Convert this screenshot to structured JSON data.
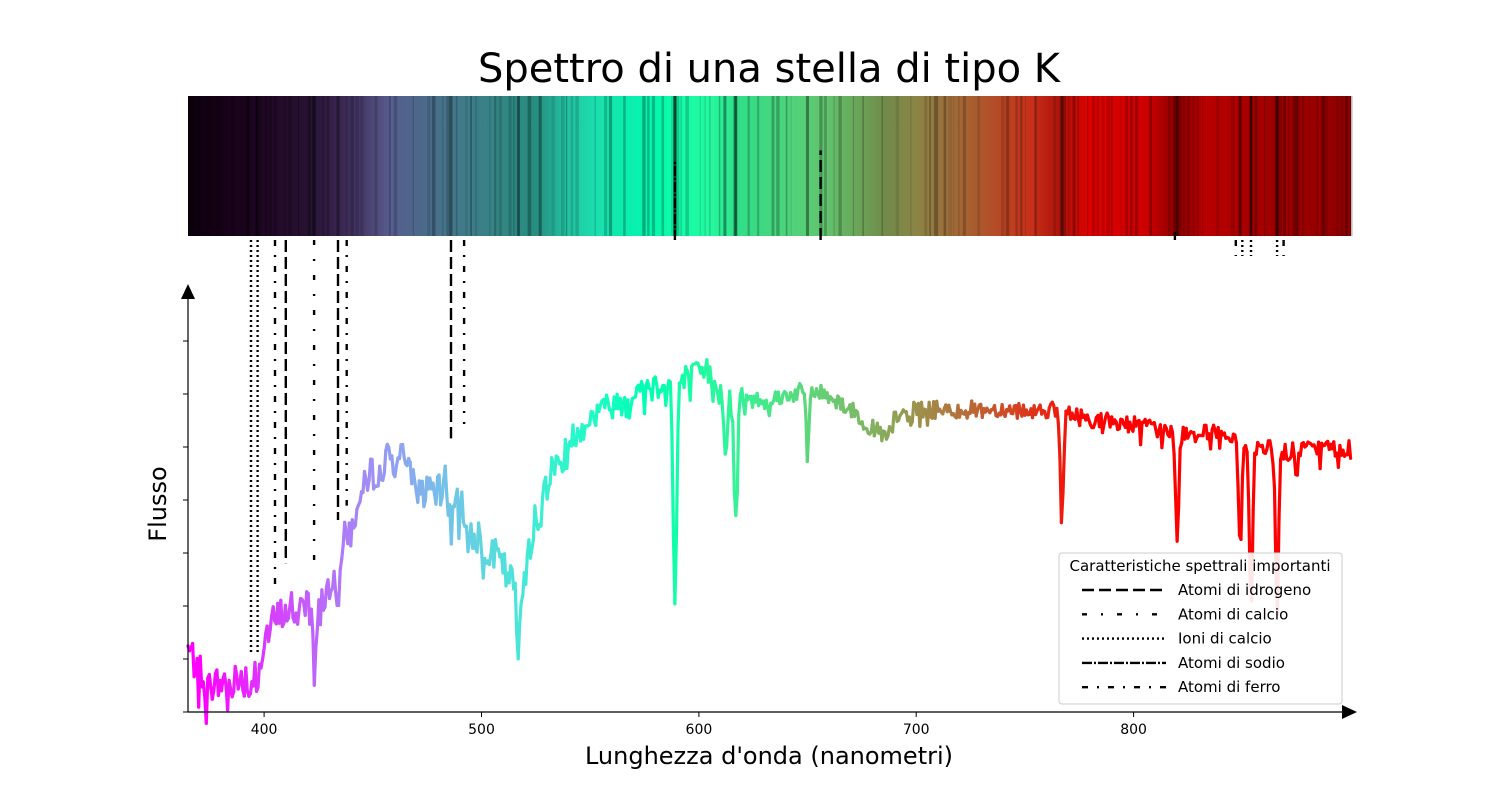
{
  "chart_data": {
    "type": "line",
    "title": "Spettro di una stella di tipo K",
    "xlabel": "Lunghezza d'onda (nanometri)",
    "ylabel": "Flusso",
    "xlim": [
      365,
      900
    ],
    "ylim": [
      0,
      1.12
    ],
    "xticks": [
      400,
      500,
      600,
      700,
      800
    ],
    "ytick_count": 12,
    "yticklabels_shown": false,
    "grid": false,
    "legend_position": "lower-right",
    "spectrum_colormap": "rainbow (violet at short wavelength to red at long wavelength)",
    "spectrum_profile": {
      "x": [
        365,
        370,
        373,
        380,
        390,
        395,
        400,
        405,
        410,
        415,
        420,
        425,
        430,
        435,
        440,
        445,
        450,
        455,
        460,
        465,
        470,
        475,
        480,
        485,
        490,
        495,
        500,
        505,
        510,
        515,
        518,
        522,
        525,
        530,
        535,
        540,
        545,
        550,
        555,
        560,
        565,
        570,
        575,
        580,
        585,
        590,
        595,
        600,
        605,
        610,
        615,
        620,
        630,
        640,
        650,
        660,
        670,
        680,
        687,
        690,
        700,
        720,
        740,
        760,
        780,
        800,
        820,
        840,
        850,
        860,
        870,
        880,
        890,
        900
      ],
      "y": [
        0.13,
        0.09,
        0.05,
        0.06,
        0.07,
        0.09,
        0.15,
        0.19,
        0.21,
        0.22,
        0.24,
        0.21,
        0.27,
        0.34,
        0.38,
        0.45,
        0.5,
        0.52,
        0.53,
        0.52,
        0.48,
        0.45,
        0.45,
        0.49,
        0.44,
        0.38,
        0.36,
        0.33,
        0.3,
        0.26,
        0.24,
        0.35,
        0.42,
        0.48,
        0.52,
        0.56,
        0.59,
        0.61,
        0.63,
        0.64,
        0.65,
        0.66,
        0.67,
        0.68,
        0.69,
        0.69,
        0.7,
        0.7,
        0.71,
        0.67,
        0.64,
        0.65,
        0.65,
        0.66,
        0.67,
        0.66,
        0.63,
        0.59,
        0.57,
        0.61,
        0.63,
        0.63,
        0.63,
        0.63,
        0.61,
        0.6,
        0.58,
        0.58,
        0.55,
        0.55,
        0.54,
        0.55,
        0.55,
        0.55
      ]
    },
    "absorption_lines": [
      {
        "x": 589.0,
        "depth": 0.47,
        "width": 0.8
      },
      {
        "x": 854.0,
        "depth": 0.34,
        "width": 0.7
      },
      {
        "x": 866.0,
        "depth": 0.34,
        "width": 0.7
      },
      {
        "x": 849.0,
        "depth": 0.22,
        "width": 0.7
      },
      {
        "x": 820.0,
        "depth": 0.23,
        "width": 0.7
      },
      {
        "x": 767.0,
        "depth": 0.22,
        "width": 0.7
      },
      {
        "x": 617.0,
        "depth": 0.25,
        "width": 0.8
      },
      {
        "x": 612.0,
        "depth": 0.14,
        "width": 0.6
      },
      {
        "x": 650.0,
        "depth": 0.14,
        "width": 0.6
      },
      {
        "x": 517.0,
        "depth": 0.12,
        "width": 0.8
      },
      {
        "x": 527.0,
        "depth": 0.1,
        "width": 0.6
      },
      {
        "x": 486.0,
        "depth": 0.1,
        "width": 0.7
      },
      {
        "x": 434.0,
        "depth": 0.08,
        "width": 0.7
      },
      {
        "x": 423.0,
        "depth": 0.14,
        "width": 0.6
      },
      {
        "x": 397.0,
        "depth": 0.05,
        "width": 0.7
      },
      {
        "x": 393.0,
        "depth": 0.05,
        "width": 0.7
      },
      {
        "x": 875.0,
        "depth": 0.06,
        "width": 0.6
      }
    ],
    "spectral_features": [
      {
        "x": 394.0,
        "type": "ca_ion",
        "top": 1.3,
        "bottom": 0.12
      },
      {
        "x": 397.0,
        "type": "ca_ion",
        "top": 1.3,
        "bottom": 0.12
      },
      {
        "x": 405.0,
        "type": "fe_atom",
        "top": 1.3,
        "bottom": 0.26
      },
      {
        "x": 410.0,
        "type": "h_atom",
        "top": 1.3,
        "bottom": 0.31
      },
      {
        "x": 423.0,
        "type": "ca_atom",
        "top": 1.3,
        "bottom": 0.3
      },
      {
        "x": 434.0,
        "type": "h_atom",
        "top": 1.3,
        "bottom": 0.4
      },
      {
        "x": 438.0,
        "type": "fe_atom",
        "top": 1.3,
        "bottom": 0.43
      },
      {
        "x": 486.0,
        "type": "h_atom",
        "top": 1.3,
        "bottom": 0.57
      },
      {
        "x": 492.0,
        "type": "fe_atom",
        "top": 1.3,
        "bottom": 0.6
      },
      {
        "x": 589.0,
        "type": "na_atom",
        "top": 1.3,
        "bottom": 1.15
      },
      {
        "x": 656.0,
        "type": "h_atom",
        "top": 1.3,
        "bottom": 1.17
      },
      {
        "x": 819.0,
        "type": "na_atom",
        "top": 1.3,
        "bottom": 1.0
      },
      {
        "x": 847.0,
        "type": "fe_atom",
        "top": 1.3,
        "bottom": 0.95
      },
      {
        "x": 850.0,
        "type": "ca_ion",
        "top": 1.3,
        "bottom": 0.95
      },
      {
        "x": 854.0,
        "type": "ca_ion",
        "top": 1.3,
        "bottom": 0.95
      },
      {
        "x": 866.0,
        "type": "ca_ion",
        "top": 1.3,
        "bottom": 0.95
      },
      {
        "x": 869.0,
        "type": "fe_atom",
        "top": 1.3,
        "bottom": 0.95
      }
    ],
    "legend": {
      "title": "Caratteristiche spettrali importanti",
      "items": [
        {
          "key": "h_atom",
          "label": "Atomi di idrogeno",
          "dash": "12,5"
        },
        {
          "key": "ca_atom",
          "label": "Atomi di calcio",
          "dash": "5,14,2,14"
        },
        {
          "key": "ca_ion",
          "label": "Ioni di calcio",
          "dash": "2,3"
        },
        {
          "key": "na_atom",
          "label": "Atomi di sodio",
          "dash": "10,2,2,2"
        },
        {
          "key": "fe_atom",
          "label": "Atomi di ferro",
          "dash": "6,9,2,9"
        }
      ]
    },
    "colors": {
      "axis": "#000000",
      "legend_border": "#cccccc",
      "feature_line": "#000000"
    }
  }
}
